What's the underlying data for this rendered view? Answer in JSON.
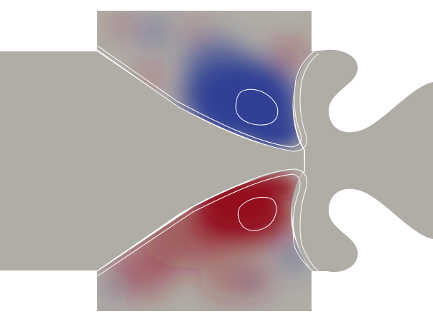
{
  "scene": {
    "background_color": "#ffffff",
    "solid_color": "#b0aca6",
    "contour_line_color": "#ffffff",
    "colormap": {
      "name": "cool-to-warm",
      "negative_color": "#2f3f95",
      "neutral_color": "#b0aca6",
      "positive_color": "#94101f"
    },
    "fields": [
      {
        "name": "negative-region",
        "sign": "negative",
        "color": "#2f3f95"
      },
      {
        "name": "positive-region",
        "sign": "positive",
        "color": "#94101f"
      }
    ]
  }
}
